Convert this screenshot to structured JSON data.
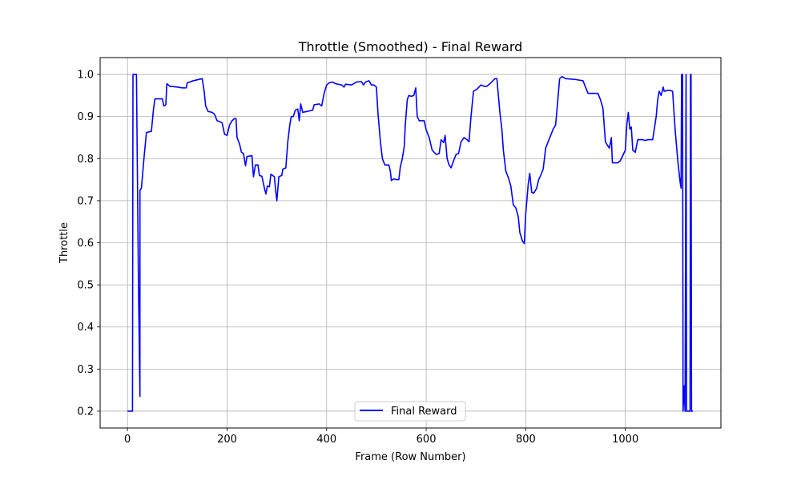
{
  "chart_data": {
    "type": "line",
    "title": "Throttle (Smoothed) - Final Reward",
    "xlabel": "Frame (Row Number)",
    "ylabel": "Throttle",
    "xlim": [
      -55,
      1192
    ],
    "ylim": [
      0.16,
      1.04
    ],
    "xticks": [
      0,
      200,
      400,
      600,
      800,
      1000
    ],
    "yticks": [
      0.2,
      0.3,
      0.4,
      0.5,
      0.6,
      0.7,
      0.8,
      0.9,
      1.0
    ],
    "xtick_labels": [
      "0",
      "200",
      "400",
      "600",
      "800",
      "1000"
    ],
    "ytick_labels": [
      "0.2",
      "0.3",
      "0.4",
      "0.5",
      "0.6",
      "0.7",
      "0.8",
      "0.9",
      "1.0"
    ],
    "grid": true,
    "legend_position": "bottom-center",
    "series": [
      {
        "name": "Final Reward",
        "color": "#0000ff",
        "points": [
          [
            0,
            0.2
          ],
          [
            10,
            0.2
          ],
          [
            11,
            1.0
          ],
          [
            18,
            1.0
          ],
          [
            22,
            0.5
          ],
          [
            25,
            0.235
          ],
          [
            25,
            0.725
          ],
          [
            28,
            0.73
          ],
          [
            33,
            0.8
          ],
          [
            38,
            0.862
          ],
          [
            48,
            0.865
          ],
          [
            52,
            0.915
          ],
          [
            55,
            0.942
          ],
          [
            70,
            0.942
          ],
          [
            73,
            0.925
          ],
          [
            77,
            0.928
          ],
          [
            79,
            0.978
          ],
          [
            85,
            0.972
          ],
          [
            100,
            0.97
          ],
          [
            110,
            0.968
          ],
          [
            118,
            0.968
          ],
          [
            120,
            0.98
          ],
          [
            132,
            0.985
          ],
          [
            150,
            0.99
          ],
          [
            154,
            0.96
          ],
          [
            157,
            0.925
          ],
          [
            162,
            0.912
          ],
          [
            170,
            0.91
          ],
          [
            175,
            0.905
          ],
          [
            180,
            0.89
          ],
          [
            185,
            0.888
          ],
          [
            190,
            0.885
          ],
          [
            195,
            0.858
          ],
          [
            200,
            0.855
          ],
          [
            205,
            0.88
          ],
          [
            210,
            0.89
          ],
          [
            215,
            0.895
          ],
          [
            218,
            0.895
          ],
          [
            220,
            0.85
          ],
          [
            225,
            0.835
          ],
          [
            229,
            0.815
          ],
          [
            233,
            0.812
          ],
          [
            237,
            0.783
          ],
          [
            240,
            0.805
          ],
          [
            250,
            0.807
          ],
          [
            253,
            0.757
          ],
          [
            257,
            0.785
          ],
          [
            262,
            0.785
          ],
          [
            265,
            0.76
          ],
          [
            270,
            0.758
          ],
          [
            275,
            0.73
          ],
          [
            278,
            0.716
          ],
          [
            281,
            0.735
          ],
          [
            285,
            0.733
          ],
          [
            288,
            0.763
          ],
          [
            295,
            0.757
          ],
          [
            298,
            0.72
          ],
          [
            300,
            0.7
          ],
          [
            304,
            0.757
          ],
          [
            310,
            0.76
          ],
          [
            312,
            0.775
          ],
          [
            318,
            0.778
          ],
          [
            322,
            0.84
          ],
          [
            326,
            0.88
          ],
          [
            329,
            0.9
          ],
          [
            333,
            0.9
          ],
          [
            337,
            0.915
          ],
          [
            342,
            0.918
          ],
          [
            345,
            0.89
          ],
          [
            348,
            0.93
          ],
          [
            352,
            0.91
          ],
          [
            360,
            0.912
          ],
          [
            372,
            0.915
          ],
          [
            375,
            0.928
          ],
          [
            385,
            0.93
          ],
          [
            390,
            0.925
          ],
          [
            395,
            0.955
          ],
          [
            400,
            0.975
          ],
          [
            405,
            0.98
          ],
          [
            412,
            0.982
          ],
          [
            418,
            0.978
          ],
          [
            430,
            0.975
          ],
          [
            435,
            0.97
          ],
          [
            438,
            0.977
          ],
          [
            450,
            0.975
          ],
          [
            460,
            0.982
          ],
          [
            470,
            0.983
          ],
          [
            474,
            0.975
          ],
          [
            478,
            0.982
          ],
          [
            485,
            0.985
          ],
          [
            490,
            0.975
          ],
          [
            495,
            0.975
          ],
          [
            500,
            0.97
          ],
          [
            503,
            0.91
          ],
          [
            508,
            0.84
          ],
          [
            512,
            0.8
          ],
          [
            517,
            0.785
          ],
          [
            525,
            0.785
          ],
          [
            528,
            0.77
          ],
          [
            530,
            0.748
          ],
          [
            535,
            0.752
          ],
          [
            540,
            0.75
          ],
          [
            545,
            0.75
          ],
          [
            548,
            0.78
          ],
          [
            552,
            0.8
          ],
          [
            556,
            0.83
          ],
          [
            558,
            0.88
          ],
          [
            562,
            0.94
          ],
          [
            565,
            0.95
          ],
          [
            570,
            0.948
          ],
          [
            575,
            0.95
          ],
          [
            579,
            0.968
          ],
          [
            582,
            0.9
          ],
          [
            586,
            0.89
          ],
          [
            590,
            0.89
          ],
          [
            596,
            0.89
          ],
          [
            600,
            0.868
          ],
          [
            606,
            0.85
          ],
          [
            612,
            0.82
          ],
          [
            620,
            0.81
          ],
          [
            626,
            0.812
          ],
          [
            630,
            0.845
          ],
          [
            635,
            0.838
          ],
          [
            638,
            0.855
          ],
          [
            642,
            0.8
          ],
          [
            646,
            0.785
          ],
          [
            650,
            0.778
          ],
          [
            655,
            0.795
          ],
          [
            660,
            0.81
          ],
          [
            665,
            0.812
          ],
          [
            670,
            0.84
          ],
          [
            676,
            0.85
          ],
          [
            682,
            0.845
          ],
          [
            686,
            0.84
          ],
          [
            690,
            0.9
          ],
          [
            695,
            0.96
          ],
          [
            702,
            0.965
          ],
          [
            710,
            0.975
          ],
          [
            716,
            0.972
          ],
          [
            722,
            0.972
          ],
          [
            730,
            0.98
          ],
          [
            738,
            0.99
          ],
          [
            742,
            0.99
          ],
          [
            748,
            0.91
          ],
          [
            752,
            0.87
          ],
          [
            755,
            0.82
          ],
          [
            760,
            0.77
          ],
          [
            765,
            0.755
          ],
          [
            770,
            0.735
          ],
          [
            775,
            0.69
          ],
          [
            780,
            0.683
          ],
          [
            785,
            0.662
          ],
          [
            788,
            0.625
          ],
          [
            793,
            0.605
          ],
          [
            797,
            0.598
          ],
          [
            800,
            0.67
          ],
          [
            805,
            0.74
          ],
          [
            808,
            0.765
          ],
          [
            812,
            0.72
          ],
          [
            816,
            0.718
          ],
          [
            822,
            0.73
          ],
          [
            826,
            0.75
          ],
          [
            830,
            0.76
          ],
          [
            835,
            0.775
          ],
          [
            840,
            0.825
          ],
          [
            845,
            0.84
          ],
          [
            855,
            0.87
          ],
          [
            860,
            0.88
          ],
          [
            863,
            0.92
          ],
          [
            868,
            0.99
          ],
          [
            873,
            0.995
          ],
          [
            880,
            0.99
          ],
          [
            900,
            0.988
          ],
          [
            915,
            0.985
          ],
          [
            920,
            0.97
          ],
          [
            925,
            0.955
          ],
          [
            945,
            0.955
          ],
          [
            950,
            0.94
          ],
          [
            955,
            0.92
          ],
          [
            960,
            0.84
          ],
          [
            965,
            0.83
          ],
          [
            968,
            0.825
          ],
          [
            972,
            0.85
          ],
          [
            974,
            0.79
          ],
          [
            978,
            0.79
          ],
          [
            985,
            0.79
          ],
          [
            990,
            0.795
          ],
          [
            1000,
            0.82
          ],
          [
            1003,
            0.88
          ],
          [
            1006,
            0.91
          ],
          [
            1009,
            0.87
          ],
          [
            1012,
            0.875
          ],
          [
            1015,
            0.82
          ],
          [
            1020,
            0.815
          ],
          [
            1025,
            0.845
          ],
          [
            1035,
            0.845
          ],
          [
            1040,
            0.843
          ],
          [
            1045,
            0.845
          ],
          [
            1055,
            0.845
          ],
          [
            1062,
            0.9
          ],
          [
            1065,
            0.94
          ],
          [
            1068,
            0.96
          ],
          [
            1072,
            0.95
          ],
          [
            1076,
            0.97
          ],
          [
            1078,
            0.96
          ],
          [
            1085,
            0.962
          ],
          [
            1090,
            0.962
          ],
          [
            1095,
            0.96
          ],
          [
            1100,
            0.87
          ],
          [
            1105,
            0.8
          ],
          [
            1110,
            0.745
          ],
          [
            1112,
            0.73
          ],
          [
            1113,
            1.0
          ],
          [
            1115,
            1.0
          ],
          [
            1116,
            0.2
          ],
          [
            1118,
            0.26
          ],
          [
            1120,
            0.2
          ],
          [
            1122,
            1.0
          ],
          [
            1123,
            0.2
          ],
          [
            1130,
            0.2
          ],
          [
            1131,
            1.0
          ],
          [
            1132,
            1.0
          ],
          [
            1133,
            0.2
          ],
          [
            1136,
            0.2
          ]
        ]
      }
    ]
  }
}
